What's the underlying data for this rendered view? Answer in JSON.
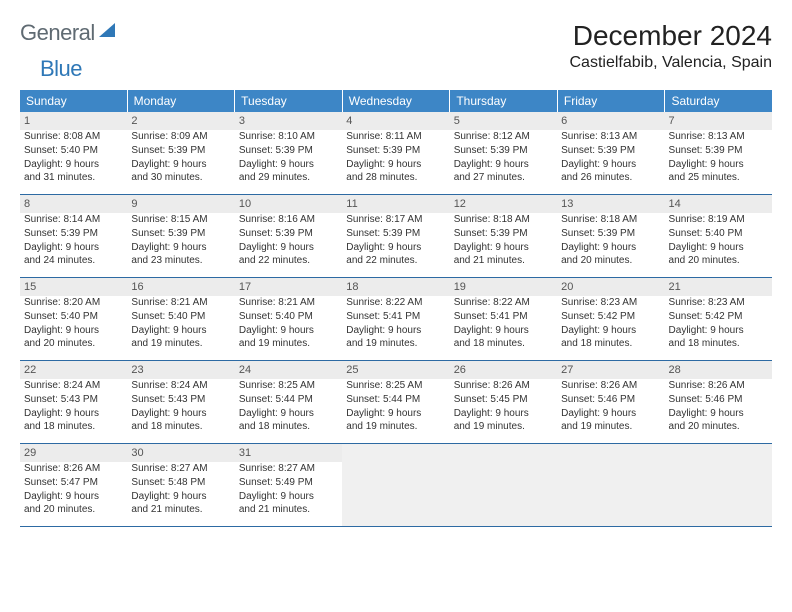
{
  "brand": {
    "word1": "General",
    "word2": "Blue"
  },
  "colors": {
    "header_bg": "#3d86c6",
    "header_text": "#ffffff",
    "rule": "#2d6aa3",
    "daynum_bg": "#ececec",
    "text": "#333333",
    "brand_gray": "#5f6a72",
    "brand_blue": "#2f78b7"
  },
  "title": "December 2024",
  "location": "Castielfabib, Valencia, Spain",
  "weekdays": [
    "Sunday",
    "Monday",
    "Tuesday",
    "Wednesday",
    "Thursday",
    "Friday",
    "Saturday"
  ],
  "weeks": [
    [
      {
        "n": "1",
        "sunrise": "Sunrise: 8:08 AM",
        "sunset": "Sunset: 5:40 PM",
        "day1": "Daylight: 9 hours",
        "day2": "and 31 minutes."
      },
      {
        "n": "2",
        "sunrise": "Sunrise: 8:09 AM",
        "sunset": "Sunset: 5:39 PM",
        "day1": "Daylight: 9 hours",
        "day2": "and 30 minutes."
      },
      {
        "n": "3",
        "sunrise": "Sunrise: 8:10 AM",
        "sunset": "Sunset: 5:39 PM",
        "day1": "Daylight: 9 hours",
        "day2": "and 29 minutes."
      },
      {
        "n": "4",
        "sunrise": "Sunrise: 8:11 AM",
        "sunset": "Sunset: 5:39 PM",
        "day1": "Daylight: 9 hours",
        "day2": "and 28 minutes."
      },
      {
        "n": "5",
        "sunrise": "Sunrise: 8:12 AM",
        "sunset": "Sunset: 5:39 PM",
        "day1": "Daylight: 9 hours",
        "day2": "and 27 minutes."
      },
      {
        "n": "6",
        "sunrise": "Sunrise: 8:13 AM",
        "sunset": "Sunset: 5:39 PM",
        "day1": "Daylight: 9 hours",
        "day2": "and 26 minutes."
      },
      {
        "n": "7",
        "sunrise": "Sunrise: 8:13 AM",
        "sunset": "Sunset: 5:39 PM",
        "day1": "Daylight: 9 hours",
        "day2": "and 25 minutes."
      }
    ],
    [
      {
        "n": "8",
        "sunrise": "Sunrise: 8:14 AM",
        "sunset": "Sunset: 5:39 PM",
        "day1": "Daylight: 9 hours",
        "day2": "and 24 minutes."
      },
      {
        "n": "9",
        "sunrise": "Sunrise: 8:15 AM",
        "sunset": "Sunset: 5:39 PM",
        "day1": "Daylight: 9 hours",
        "day2": "and 23 minutes."
      },
      {
        "n": "10",
        "sunrise": "Sunrise: 8:16 AM",
        "sunset": "Sunset: 5:39 PM",
        "day1": "Daylight: 9 hours",
        "day2": "and 22 minutes."
      },
      {
        "n": "11",
        "sunrise": "Sunrise: 8:17 AM",
        "sunset": "Sunset: 5:39 PM",
        "day1": "Daylight: 9 hours",
        "day2": "and 22 minutes."
      },
      {
        "n": "12",
        "sunrise": "Sunrise: 8:18 AM",
        "sunset": "Sunset: 5:39 PM",
        "day1": "Daylight: 9 hours",
        "day2": "and 21 minutes."
      },
      {
        "n": "13",
        "sunrise": "Sunrise: 8:18 AM",
        "sunset": "Sunset: 5:39 PM",
        "day1": "Daylight: 9 hours",
        "day2": "and 20 minutes."
      },
      {
        "n": "14",
        "sunrise": "Sunrise: 8:19 AM",
        "sunset": "Sunset: 5:40 PM",
        "day1": "Daylight: 9 hours",
        "day2": "and 20 minutes."
      }
    ],
    [
      {
        "n": "15",
        "sunrise": "Sunrise: 8:20 AM",
        "sunset": "Sunset: 5:40 PM",
        "day1": "Daylight: 9 hours",
        "day2": "and 20 minutes."
      },
      {
        "n": "16",
        "sunrise": "Sunrise: 8:21 AM",
        "sunset": "Sunset: 5:40 PM",
        "day1": "Daylight: 9 hours",
        "day2": "and 19 minutes."
      },
      {
        "n": "17",
        "sunrise": "Sunrise: 8:21 AM",
        "sunset": "Sunset: 5:40 PM",
        "day1": "Daylight: 9 hours",
        "day2": "and 19 minutes."
      },
      {
        "n": "18",
        "sunrise": "Sunrise: 8:22 AM",
        "sunset": "Sunset: 5:41 PM",
        "day1": "Daylight: 9 hours",
        "day2": "and 19 minutes."
      },
      {
        "n": "19",
        "sunrise": "Sunrise: 8:22 AM",
        "sunset": "Sunset: 5:41 PM",
        "day1": "Daylight: 9 hours",
        "day2": "and 18 minutes."
      },
      {
        "n": "20",
        "sunrise": "Sunrise: 8:23 AM",
        "sunset": "Sunset: 5:42 PM",
        "day1": "Daylight: 9 hours",
        "day2": "and 18 minutes."
      },
      {
        "n": "21",
        "sunrise": "Sunrise: 8:23 AM",
        "sunset": "Sunset: 5:42 PM",
        "day1": "Daylight: 9 hours",
        "day2": "and 18 minutes."
      }
    ],
    [
      {
        "n": "22",
        "sunrise": "Sunrise: 8:24 AM",
        "sunset": "Sunset: 5:43 PM",
        "day1": "Daylight: 9 hours",
        "day2": "and 18 minutes."
      },
      {
        "n": "23",
        "sunrise": "Sunrise: 8:24 AM",
        "sunset": "Sunset: 5:43 PM",
        "day1": "Daylight: 9 hours",
        "day2": "and 18 minutes."
      },
      {
        "n": "24",
        "sunrise": "Sunrise: 8:25 AM",
        "sunset": "Sunset: 5:44 PM",
        "day1": "Daylight: 9 hours",
        "day2": "and 18 minutes."
      },
      {
        "n": "25",
        "sunrise": "Sunrise: 8:25 AM",
        "sunset": "Sunset: 5:44 PM",
        "day1": "Daylight: 9 hours",
        "day2": "and 19 minutes."
      },
      {
        "n": "26",
        "sunrise": "Sunrise: 8:26 AM",
        "sunset": "Sunset: 5:45 PM",
        "day1": "Daylight: 9 hours",
        "day2": "and 19 minutes."
      },
      {
        "n": "27",
        "sunrise": "Sunrise: 8:26 AM",
        "sunset": "Sunset: 5:46 PM",
        "day1": "Daylight: 9 hours",
        "day2": "and 19 minutes."
      },
      {
        "n": "28",
        "sunrise": "Sunrise: 8:26 AM",
        "sunset": "Sunset: 5:46 PM",
        "day1": "Daylight: 9 hours",
        "day2": "and 20 minutes."
      }
    ],
    [
      {
        "n": "29",
        "sunrise": "Sunrise: 8:26 AM",
        "sunset": "Sunset: 5:47 PM",
        "day1": "Daylight: 9 hours",
        "day2": "and 20 minutes."
      },
      {
        "n": "30",
        "sunrise": "Sunrise: 8:27 AM",
        "sunset": "Sunset: 5:48 PM",
        "day1": "Daylight: 9 hours",
        "day2": "and 21 minutes."
      },
      {
        "n": "31",
        "sunrise": "Sunrise: 8:27 AM",
        "sunset": "Sunset: 5:49 PM",
        "day1": "Daylight: 9 hours",
        "day2": "and 21 minutes."
      },
      null,
      null,
      null,
      null
    ]
  ]
}
